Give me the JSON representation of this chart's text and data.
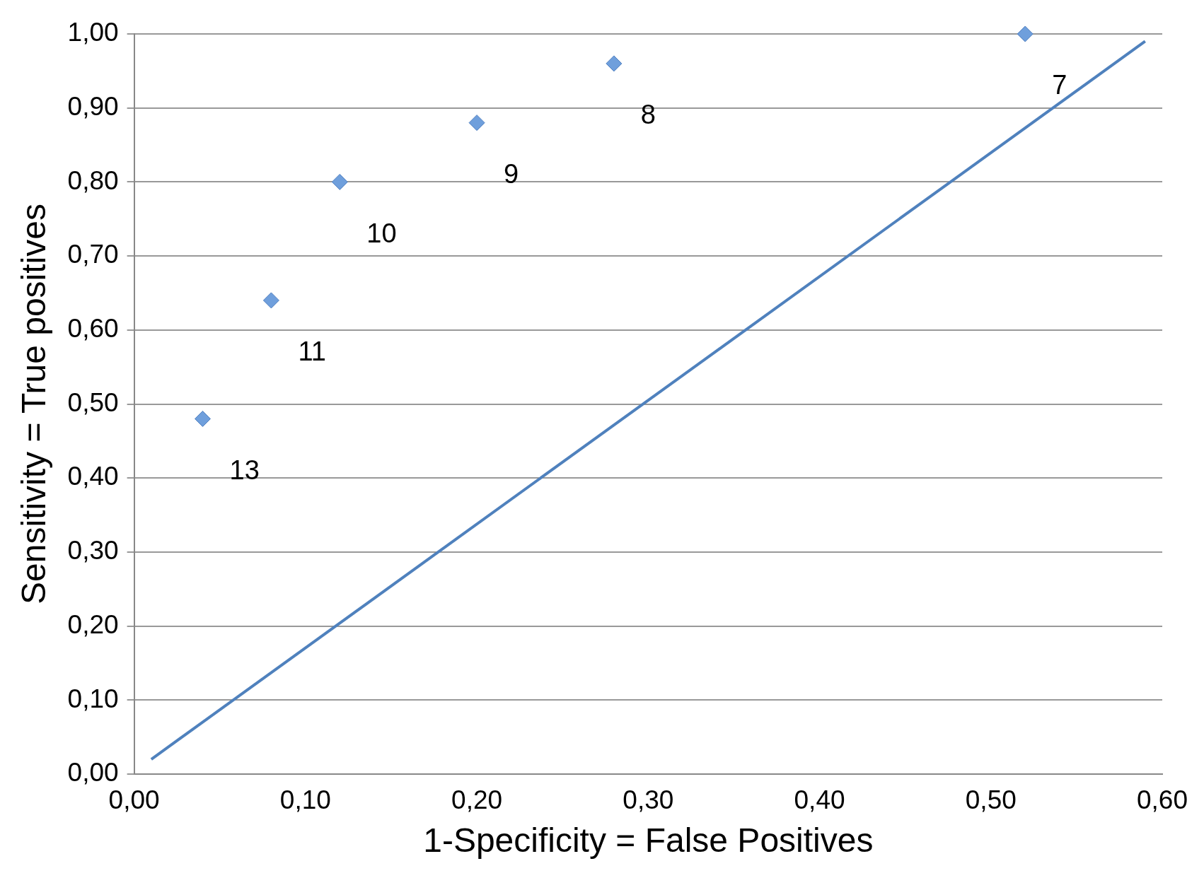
{
  "chart_data": {
    "type": "scatter",
    "xlabel": "1-Specificity = False Positives",
    "ylabel": "Sensitivity = True positives",
    "series": [
      {
        "type": "scatter",
        "color": "#6f9fdc",
        "x": [
          0.04,
          0.08,
          0.12,
          0.2,
          0.28,
          0.52
        ],
        "values": [
          0.48,
          0.64,
          0.8,
          0.88,
          0.96,
          1.0
        ],
        "marker": "diamond"
      },
      {
        "type": "line",
        "color": "#4f81bd",
        "x": [
          0.01,
          0.59
        ],
        "values": [
          0.02,
          0.99
        ],
        "marker": "none"
      }
    ],
    "xlim": [
      0,
      0.6
    ],
    "ylim": [
      0,
      1
    ],
    "xticks": [
      {
        "value": 0,
        "label": "0,00"
      },
      {
        "value": 0.1,
        "label": "0,10"
      },
      {
        "value": 0.2,
        "label": "0,20"
      },
      {
        "value": 0.3,
        "label": "0,30"
      },
      {
        "value": 0.4,
        "label": "0,40"
      },
      {
        "value": 0.5,
        "label": "0,50"
      },
      {
        "value": 0.6,
        "label": "0,60"
      }
    ],
    "yticks": [
      {
        "value": 0,
        "label": "0,00"
      },
      {
        "value": 0.1,
        "label": "0,10"
      },
      {
        "value": 0.2,
        "label": "0,20"
      },
      {
        "value": 0.3,
        "label": "0,30"
      },
      {
        "value": 0.4,
        "label": "0,40"
      },
      {
        "value": 0.5,
        "label": "0,50"
      },
      {
        "value": 0.6,
        "label": "0,60"
      },
      {
        "value": 0.7,
        "label": "0,70"
      },
      {
        "value": 0.8,
        "label": "0,80"
      },
      {
        "value": 0.9,
        "label": "0,90"
      },
      {
        "value": 1,
        "label": "1,00"
      }
    ],
    "grid": "y",
    "legend": false,
    "annotations": [
      {
        "text": "13",
        "x": 0.04,
        "y": 0.48
      },
      {
        "text": "11",
        "x": 0.08,
        "y": 0.64
      },
      {
        "text": "10",
        "x": 0.12,
        "y": 0.8
      },
      {
        "text": "9",
        "x": 0.2,
        "y": 0.88
      },
      {
        "text": "8",
        "x": 0.28,
        "y": 0.96
      },
      {
        "text": "7",
        "x": 0.52,
        "y": 1.0
      }
    ]
  }
}
